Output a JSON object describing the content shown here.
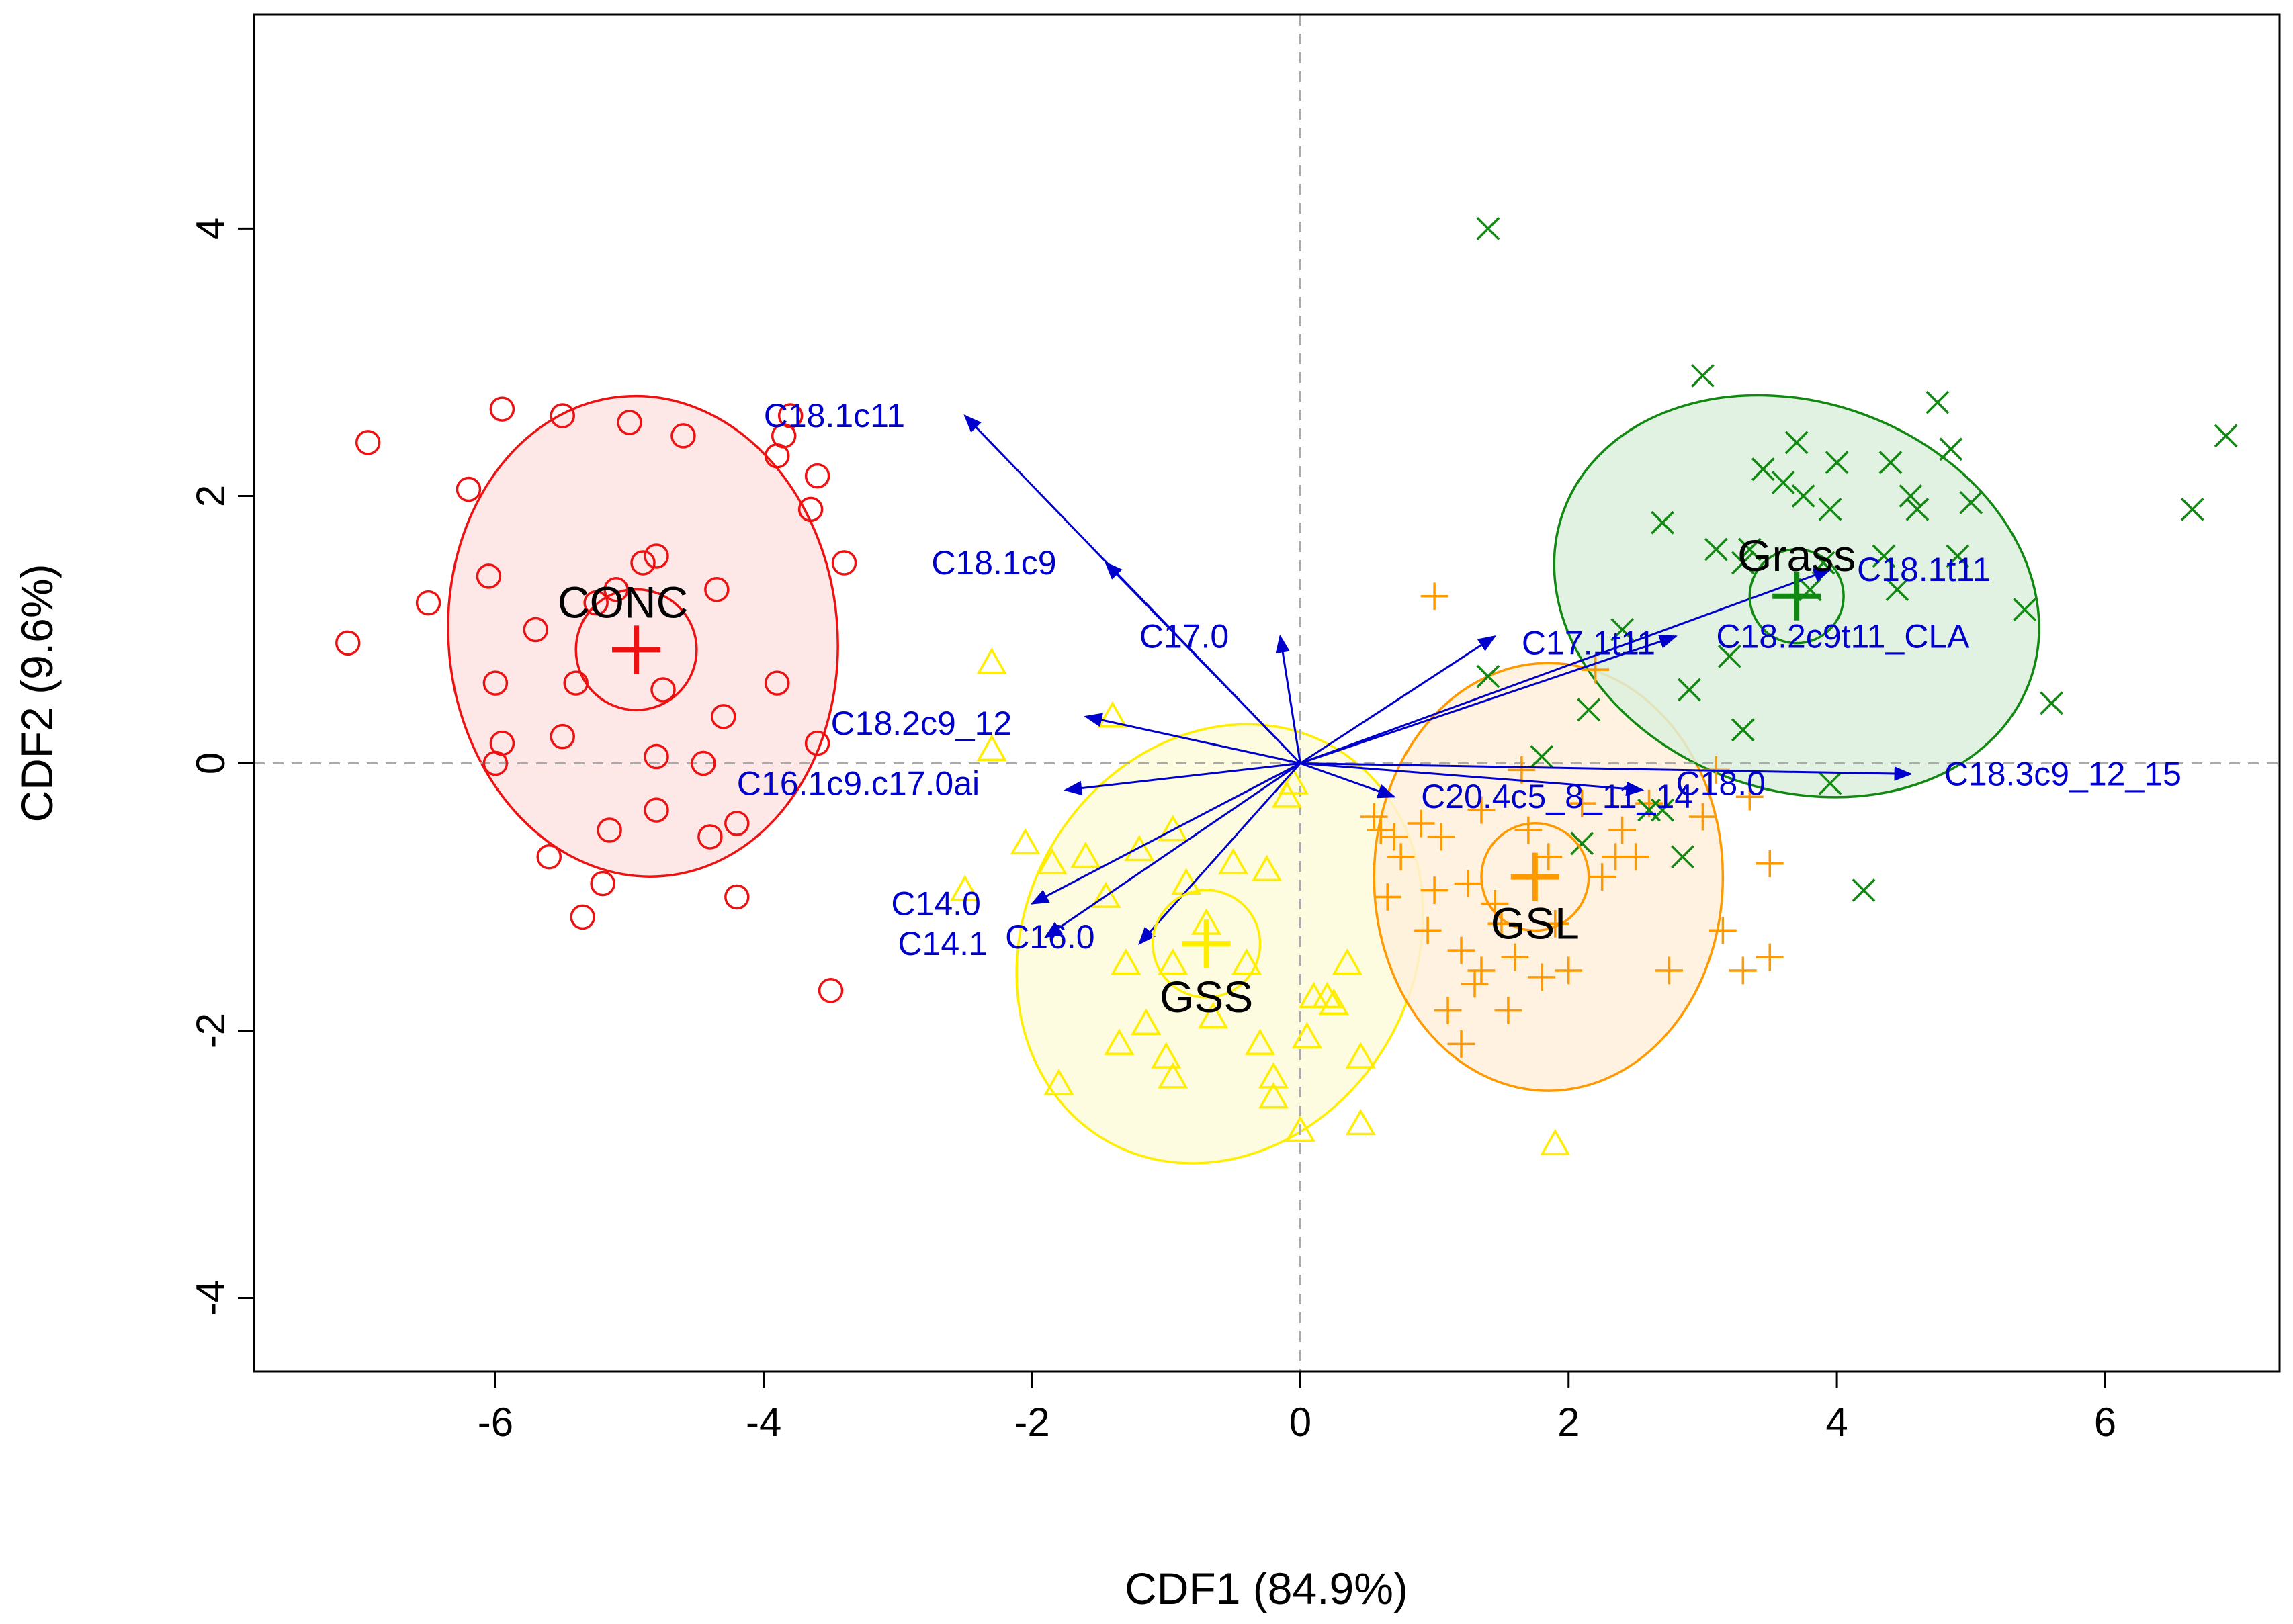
{
  "chart_data": {
    "type": "scatter",
    "title": "",
    "xlabel": "CDF1 (84.9%)",
    "ylabel": "CDF2 (9.6%)",
    "xlim": [
      -7.8,
      7.3
    ],
    "ylim": [
      -4.55,
      5.6
    ],
    "xticks": [
      -6,
      -4,
      -2,
      0,
      2,
      4,
      6
    ],
    "yticks": [
      -4,
      -2,
      0,
      2,
      4
    ],
    "xtick_labels": [
      "-6",
      "-4",
      "-2",
      "0",
      "2",
      "4",
      "6"
    ],
    "ytick_labels": [
      "-4",
      "-2",
      "0",
      "2",
      "4"
    ],
    "reference_lines": {
      "x": 0,
      "y": 0,
      "style": "dashed",
      "color": "#aaaaaa"
    },
    "arrow_color": "#0000cc",
    "groups": [
      {
        "name": "CONC",
        "color": "#ee1111",
        "fill": "#fde3e3",
        "marker": "circle",
        "centroid": [
          -4.95,
          0.85
        ],
        "inner_radius": 0.45,
        "ellipse": {
          "cx": -4.9,
          "cy": 0.95,
          "rx": 1.45,
          "ry": 1.8,
          "angle": 5
        },
        "label_pos": [
          -5.05,
          1.2
        ],
        "points": [
          [
            -7.1,
            0.9
          ],
          [
            -6.95,
            2.4
          ],
          [
            -6.5,
            1.2
          ],
          [
            -6.2,
            2.05
          ],
          [
            -6.05,
            1.4
          ],
          [
            -5.95,
            2.65
          ],
          [
            -6.0,
            0.6
          ],
          [
            -6.0,
            0.0
          ],
          [
            -5.95,
            0.15
          ],
          [
            -5.7,
            1.0
          ],
          [
            -5.6,
            -0.7
          ],
          [
            -5.5,
            2.6
          ],
          [
            -5.5,
            0.2
          ],
          [
            -5.4,
            0.6
          ],
          [
            -5.35,
            -1.15
          ],
          [
            -5.25,
            1.2
          ],
          [
            -5.2,
            -0.9
          ],
          [
            -5.15,
            -0.5
          ],
          [
            -5.1,
            1.3
          ],
          [
            -5.0,
            2.55
          ],
          [
            -4.9,
            1.5
          ],
          [
            -4.8,
            1.55
          ],
          [
            -4.8,
            0.05
          ],
          [
            -4.8,
            -0.35
          ],
          [
            -4.75,
            0.55
          ],
          [
            -4.6,
            2.45
          ],
          [
            -4.45,
            -0.0
          ],
          [
            -4.4,
            -0.55
          ],
          [
            -4.35,
            1.3
          ],
          [
            -4.3,
            0.35
          ],
          [
            -4.2,
            -0.45
          ],
          [
            -4.2,
            -1.0
          ],
          [
            -3.9,
            0.6
          ],
          [
            -3.9,
            2.3
          ],
          [
            -3.85,
            2.45
          ],
          [
            -3.8,
            2.6
          ],
          [
            -3.65,
            1.9
          ],
          [
            -3.6,
            2.15
          ],
          [
            -3.6,
            0.15
          ],
          [
            -3.5,
            -1.7
          ],
          [
            -3.4,
            1.5
          ]
        ]
      },
      {
        "name": "GSS",
        "color": "#ffee00",
        "fill": "#fdfbdc",
        "marker": "triangle",
        "centroid": [
          -0.7,
          -1.35
        ],
        "inner_radius": 0.4,
        "ellipse": {
          "cx": -0.6,
          "cy": -1.35,
          "rx": 1.45,
          "ry": 1.7,
          "angle": -30
        },
        "label_pos": [
          -0.7,
          -1.75
        ],
        "points": [
          [
            -2.3,
            0.75
          ],
          [
            -2.3,
            0.1
          ],
          [
            -2.05,
            -0.6
          ],
          [
            -1.85,
            -0.75
          ],
          [
            -1.8,
            -2.4
          ],
          [
            -1.6,
            -0.7
          ],
          [
            -1.45,
            -1.0
          ],
          [
            -1.4,
            0.35
          ],
          [
            -1.35,
            -2.1
          ],
          [
            -1.3,
            -1.5
          ],
          [
            -1.2,
            -0.65
          ],
          [
            -1.15,
            -1.95
          ],
          [
            -1.0,
            -2.2
          ],
          [
            -0.95,
            -2.35
          ],
          [
            -0.95,
            -1.5
          ],
          [
            -0.95,
            -0.5
          ],
          [
            -0.85,
            -0.9
          ],
          [
            -0.7,
            -1.2
          ],
          [
            -0.65,
            -1.9
          ],
          [
            -0.5,
            -0.75
          ],
          [
            -0.4,
            -1.5
          ],
          [
            -0.3,
            -2.1
          ],
          [
            -0.25,
            -0.8
          ],
          [
            -0.2,
            -2.35
          ],
          [
            -0.2,
            -2.5
          ],
          [
            -0.1,
            -0.25
          ],
          [
            -0.05,
            -0.15
          ],
          [
            0.0,
            -2.75
          ],
          [
            0.05,
            -2.05
          ],
          [
            0.1,
            -1.75
          ],
          [
            0.2,
            -1.75
          ],
          [
            0.25,
            -1.8
          ],
          [
            0.35,
            -1.5
          ],
          [
            0.45,
            -2.2
          ],
          [
            0.45,
            -2.7
          ],
          [
            1.9,
            -2.85
          ],
          [
            -2.5,
            -0.95
          ]
        ]
      },
      {
        "name": "GSL",
        "color": "#ff9900",
        "fill": "#fff0dc",
        "marker": "plus",
        "centroid": [
          1.75,
          -0.85
        ],
        "inner_radius": 0.4,
        "ellipse": {
          "cx": 1.85,
          "cy": -0.85,
          "rx": 1.3,
          "ry": 1.6,
          "angle": 0
        },
        "label_pos": [
          1.75,
          -1.2
        ],
        "points": [
          [
            0.55,
            -0.4
          ],
          [
            0.6,
            -0.5
          ],
          [
            0.65,
            -1.0
          ],
          [
            0.7,
            -0.55
          ],
          [
            0.75,
            -0.7
          ],
          [
            0.9,
            -0.45
          ],
          [
            1.0,
            -0.95
          ],
          [
            1.0,
            1.25
          ],
          [
            1.05,
            -0.55
          ],
          [
            1.1,
            -1.85
          ],
          [
            1.2,
            -2.1
          ],
          [
            1.2,
            -1.4
          ],
          [
            1.25,
            -0.9
          ],
          [
            1.3,
            -1.65
          ],
          [
            1.35,
            -1.55
          ],
          [
            1.45,
            -1.05
          ],
          [
            1.5,
            -1.2
          ],
          [
            1.55,
            -1.85
          ],
          [
            1.6,
            -1.45
          ],
          [
            1.65,
            -0.05
          ],
          [
            1.7,
            -0.5
          ],
          [
            1.8,
            -1.6
          ],
          [
            1.85,
            -0.7
          ],
          [
            1.9,
            -1.2
          ],
          [
            2.0,
            -1.55
          ],
          [
            2.1,
            -0.3
          ],
          [
            2.2,
            0.7
          ],
          [
            2.25,
            -0.85
          ],
          [
            2.35,
            -0.7
          ],
          [
            2.4,
            -0.5
          ],
          [
            2.5,
            -0.7
          ],
          [
            2.6,
            -0.3
          ],
          [
            2.75,
            -1.55
          ],
          [
            3.0,
            -0.4
          ],
          [
            3.1,
            -0.05
          ],
          [
            3.15,
            -1.25
          ],
          [
            3.3,
            -1.55
          ],
          [
            3.35,
            -0.25
          ],
          [
            3.5,
            -1.45
          ],
          [
            3.5,
            -0.75
          ],
          [
            1.35,
            -0.35
          ],
          [
            0.95,
            -1.25
          ]
        ]
      },
      {
        "name": "Grass",
        "color": "#118811",
        "fill": "#ddf0dd",
        "marker": "cross",
        "centroid": [
          3.7,
          1.25
        ],
        "inner_radius": 0.35,
        "ellipse": {
          "cx": 3.7,
          "cy": 1.25,
          "rx": 1.85,
          "ry": 1.45,
          "angle": -20
        },
        "label_pos": [
          3.7,
          1.55
        ],
        "points": [
          [
            1.4,
            4.0
          ],
          [
            1.4,
            0.65
          ],
          [
            1.8,
            0.05
          ],
          [
            2.1,
            -0.6
          ],
          [
            2.15,
            0.4
          ],
          [
            2.4,
            1.0
          ],
          [
            2.6,
            -0.35
          ],
          [
            2.7,
            -0.35
          ],
          [
            2.7,
            1.8
          ],
          [
            2.85,
            -0.7
          ],
          [
            2.9,
            0.55
          ],
          [
            3.0,
            2.9
          ],
          [
            3.1,
            1.6
          ],
          [
            3.2,
            0.8
          ],
          [
            3.3,
            0.25
          ],
          [
            3.3,
            1.5
          ],
          [
            3.35,
            1.6
          ],
          [
            3.45,
            2.2
          ],
          [
            3.6,
            2.1
          ],
          [
            3.7,
            2.4
          ],
          [
            3.75,
            2.0
          ],
          [
            3.8,
            1.3
          ],
          [
            3.9,
            1.5
          ],
          [
            3.95,
            -0.15
          ],
          [
            3.95,
            1.9
          ],
          [
            4.0,
            2.25
          ],
          [
            4.2,
            -0.95
          ],
          [
            4.35,
            1.55
          ],
          [
            4.4,
            2.25
          ],
          [
            4.45,
            1.3
          ],
          [
            4.55,
            2.0
          ],
          [
            4.6,
            1.9
          ],
          [
            4.75,
            2.7
          ],
          [
            4.85,
            2.35
          ],
          [
            4.9,
            1.55
          ],
          [
            5.0,
            1.95
          ],
          [
            5.4,
            1.15
          ],
          [
            5.6,
            0.45
          ],
          [
            6.65,
            1.9
          ],
          [
            6.9,
            2.45
          ]
        ]
      }
    ],
    "loadings": [
      {
        "name": "C18.1c11",
        "x": -2.5,
        "y": 2.6,
        "lx": -4.0,
        "ly": 2.6,
        "anchor": "start"
      },
      {
        "name": "C18.1c9",
        "x": -1.45,
        "y": 1.5,
        "lx": -2.75,
        "ly": 1.5,
        "anchor": "start"
      },
      {
        "name": "C17.0",
        "x": -0.15,
        "y": 0.95,
        "lx": -1.2,
        "ly": 0.95,
        "anchor": "start"
      },
      {
        "name": "C18.2c9_12",
        "x": -1.6,
        "y": 0.35,
        "lx": -3.5,
        "ly": 0.3,
        "anchor": "start"
      },
      {
        "name": "C16.1c9.c17.0ai",
        "x": -1.75,
        "y": -0.2,
        "lx": -4.2,
        "ly": -0.15,
        "anchor": "start"
      },
      {
        "name": "C14.0",
        "x": -2.0,
        "y": -1.05,
        "lx": -3.05,
        "ly": -1.05,
        "anchor": "start"
      },
      {
        "name": "C14.1",
        "x": -1.9,
        "y": -1.3,
        "lx": -3.0,
        "ly": -1.35,
        "anchor": "start"
      },
      {
        "name": "C16.0",
        "x": -1.2,
        "y": -1.35,
        "lx": -2.2,
        "ly": -1.3,
        "anchor": "start"
      },
      {
        "name": "C20.4c5_8_11_14",
        "x": 0.7,
        "y": -0.25,
        "lx": 0.9,
        "ly": -0.25,
        "anchor": "start"
      },
      {
        "name": "C18.0",
        "x": 2.55,
        "y": -0.2,
        "lx": 2.8,
        "ly": -0.15,
        "anchor": "start"
      },
      {
        "name": "C17.1t11",
        "x": 1.45,
        "y": 0.95,
        "lx": 1.65,
        "ly": 0.9,
        "anchor": "start"
      },
      {
        "name": "C18.1t11",
        "x": 3.95,
        "y": 1.45,
        "lx": 4.15,
        "ly": 1.45,
        "anchor": "start"
      },
      {
        "name": "C18.2c9t11_CLA",
        "x": 2.8,
        "y": 0.95,
        "lx": 3.1,
        "ly": 0.95,
        "anchor": "start"
      },
      {
        "name": "C18.3c9_12_15",
        "x": 4.55,
        "y": -0.08,
        "lx": 4.8,
        "ly": -0.08,
        "anchor": "start"
      }
    ]
  }
}
